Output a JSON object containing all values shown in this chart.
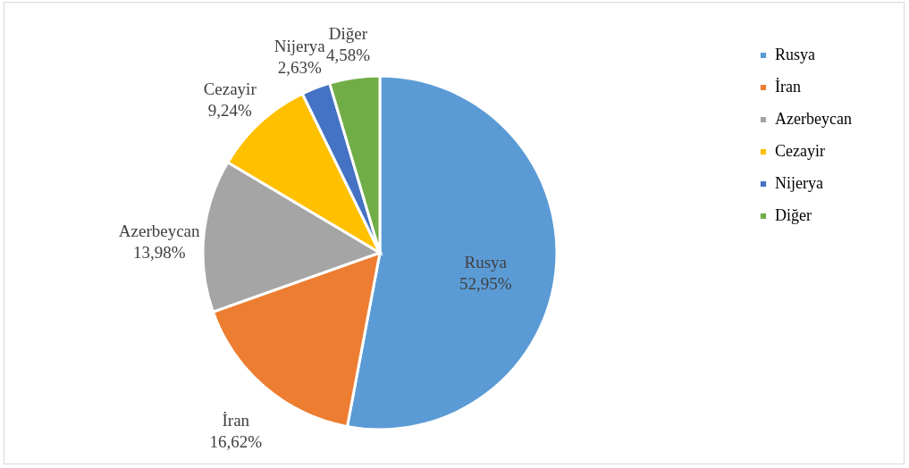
{
  "chart_data": {
    "type": "pie",
    "categories": [
      "Rusya",
      "İran",
      "Azerbeycan",
      "Cezayir",
      "Nijerya",
      "Diğer"
    ],
    "values": [
      52.95,
      16.62,
      13.98,
      9.24,
      2.63,
      4.58
    ],
    "value_labels": [
      "52,95%",
      "16,62%",
      "13,98%",
      "9,24%",
      "2,63%",
      "4,58%"
    ],
    "colors": [
      "#5b9bd5",
      "#ed7d31",
      "#a5a5a5",
      "#ffc000",
      "#4472c4",
      "#70ad47"
    ],
    "legend": "right"
  }
}
